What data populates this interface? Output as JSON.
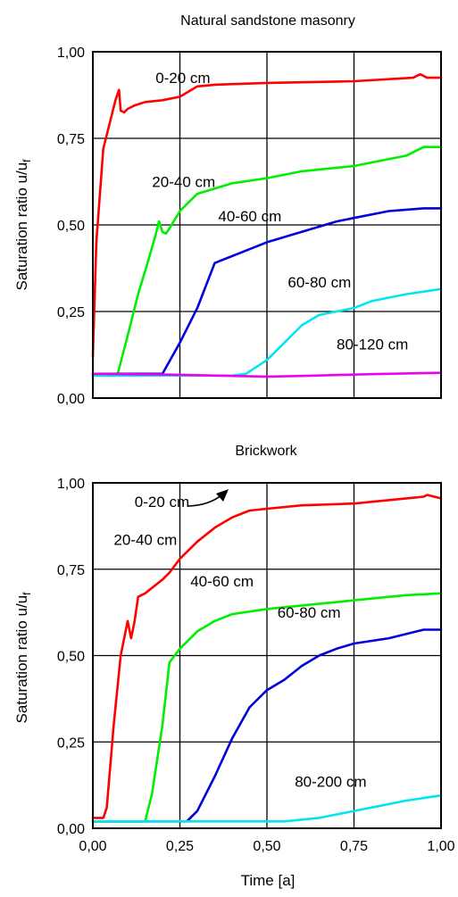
{
  "chart_data": [
    {
      "type": "line",
      "title": "Natural sandstone masonry",
      "ylabel": "Saturation ratio u/u",
      "ylabel_sub": "f",
      "xlabel": "",
      "xlim": [
        0,
        1
      ],
      "ylim": [
        0,
        1
      ],
      "yticks": [
        "0,00",
        "0,25",
        "0,50",
        "0,75",
        "1,00"
      ],
      "xticks": [],
      "grid": true,
      "series": [
        {
          "name": "0-20 cm",
          "color": "#ff0000",
          "x": [
            0.0,
            0.01,
            0.03,
            0.05,
            0.065,
            0.075,
            0.08,
            0.09,
            0.1,
            0.12,
            0.15,
            0.2,
            0.25,
            0.3,
            0.35,
            0.5,
            0.75,
            0.92,
            0.94,
            0.96,
            1.0
          ],
          "y": [
            0.12,
            0.45,
            0.72,
            0.8,
            0.86,
            0.89,
            0.83,
            0.825,
            0.835,
            0.845,
            0.855,
            0.86,
            0.87,
            0.9,
            0.905,
            0.91,
            0.915,
            0.925,
            0.935,
            0.925,
            0.925
          ]
        },
        {
          "name": "20-40 cm",
          "color": "#00ee00",
          "x": [
            0.0,
            0.07,
            0.1,
            0.13,
            0.16,
            0.18,
            0.19,
            0.2,
            0.21,
            0.22,
            0.25,
            0.3,
            0.4,
            0.5,
            0.6,
            0.75,
            0.9,
            0.95,
            0.98,
            1.0
          ],
          "y": [
            0.065,
            0.065,
            0.18,
            0.3,
            0.4,
            0.47,
            0.51,
            0.48,
            0.475,
            0.49,
            0.54,
            0.59,
            0.62,
            0.635,
            0.655,
            0.67,
            0.7,
            0.725,
            0.725,
            0.725
          ]
        },
        {
          "name": "40-60 cm",
          "color": "#0000dd",
          "x": [
            0.0,
            0.2,
            0.25,
            0.3,
            0.35,
            0.4,
            0.45,
            0.5,
            0.6,
            0.7,
            0.75,
            0.85,
            0.95,
            1.0
          ],
          "y": [
            0.07,
            0.07,
            0.16,
            0.26,
            0.39,
            0.41,
            0.43,
            0.45,
            0.48,
            0.51,
            0.52,
            0.54,
            0.548,
            0.548
          ]
        },
        {
          "name": "60-80 cm",
          "color": "#00e5ee",
          "x": [
            0.0,
            0.4,
            0.44,
            0.5,
            0.55,
            0.6,
            0.65,
            0.7,
            0.75,
            0.8,
            0.9,
            1.0
          ],
          "y": [
            0.065,
            0.065,
            0.07,
            0.11,
            0.16,
            0.21,
            0.24,
            0.25,
            0.26,
            0.28,
            0.3,
            0.315
          ]
        },
        {
          "name": "80-120 cm",
          "color": "#ee00ee",
          "x": [
            0.0,
            0.2,
            0.4,
            0.5,
            0.6,
            0.8,
            1.0
          ],
          "y": [
            0.07,
            0.068,
            0.064,
            0.062,
            0.064,
            0.069,
            0.073
          ]
        }
      ],
      "annotations": [
        {
          "text": "0-20 cm",
          "x": 0.18,
          "y": 0.91
        },
        {
          "text": "20-40 cm",
          "x": 0.17,
          "y": 0.61
        },
        {
          "text": "40-60 cm",
          "x": 0.36,
          "y": 0.51
        },
        {
          "text": "60-80 cm",
          "x": 0.56,
          "y": 0.32
        },
        {
          "text": "80-120 cm",
          "x": 0.7,
          "y": 0.14
        }
      ]
    },
    {
      "type": "line",
      "title": "Brickwork",
      "ylabel": "Saturation ratio u/u",
      "ylabel_sub": "f",
      "xlabel": "Time [a]",
      "xlim": [
        0,
        1
      ],
      "ylim": [
        0,
        1
      ],
      "yticks": [
        "0,00",
        "0,25",
        "0,50",
        "0,75",
        "1,00"
      ],
      "xticks": [
        "0,00",
        "0,25",
        "0,50",
        "0,75",
        "1,00"
      ],
      "grid": true,
      "series": [
        {
          "name": "0-20 cm",
          "color": "#ff0000",
          "x": [
            0.0,
            0.03,
            0.04,
            0.06,
            0.08,
            0.1,
            0.11,
            0.12,
            0.13,
            0.15,
            0.2,
            0.22,
            0.25,
            0.3,
            0.35,
            0.4,
            0.45,
            0.5,
            0.6,
            0.75,
            0.9,
            0.95,
            0.96,
            1.0
          ],
          "y": [
            0.03,
            0.03,
            0.06,
            0.3,
            0.5,
            0.6,
            0.55,
            0.6,
            0.67,
            0.68,
            0.72,
            0.74,
            0.78,
            0.83,
            0.87,
            0.9,
            0.92,
            0.925,
            0.935,
            0.94,
            0.955,
            0.96,
            0.965,
            0.955
          ]
        },
        {
          "name": "20-40 cm",
          "color": "#00ee00",
          "x": [
            0.0,
            0.15,
            0.17,
            0.2,
            0.22,
            0.25,
            0.3,
            0.35,
            0.4,
            0.5,
            0.6,
            0.75,
            0.9,
            1.0
          ],
          "y": [
            0.02,
            0.02,
            0.1,
            0.3,
            0.48,
            0.52,
            0.57,
            0.6,
            0.62,
            0.635,
            0.645,
            0.66,
            0.675,
            0.68
          ]
        },
        {
          "name": "40-60 cm",
          "color": "#0000dd",
          "x": [
            0.0,
            0.27,
            0.3,
            0.35,
            0.4,
            0.45,
            0.5,
            0.55,
            0.6,
            0.65,
            0.7,
            0.75,
            0.85,
            0.95,
            1.0
          ],
          "y": [
            0.02,
            0.02,
            0.05,
            0.15,
            0.26,
            0.35,
            0.4,
            0.43,
            0.47,
            0.5,
            0.52,
            0.535,
            0.55,
            0.575,
            0.575
          ]
        },
        {
          "name": "60-80 cm",
          "color": "#00e5ee",
          "x": [
            0.0,
            0.55,
            0.6,
            0.65,
            0.7,
            0.75,
            0.8,
            0.9,
            1.0
          ],
          "y": [
            0.02,
            0.02,
            0.025,
            0.03,
            0.04,
            0.05,
            0.06,
            0.08,
            0.095
          ]
        }
      ],
      "annotations": [
        {
          "text": "0-20 cm",
          "x": 0.12,
          "y": 0.93
        },
        {
          "text": "20-40 cm",
          "x": 0.06,
          "y": 0.82
        },
        {
          "text": "40-60 cm",
          "x": 0.28,
          "y": 0.7
        },
        {
          "text": "60-80 cm",
          "x": 0.53,
          "y": 0.61
        },
        {
          "text": "80-200 cm",
          "x": 0.58,
          "y": 0.12
        }
      ]
    }
  ]
}
